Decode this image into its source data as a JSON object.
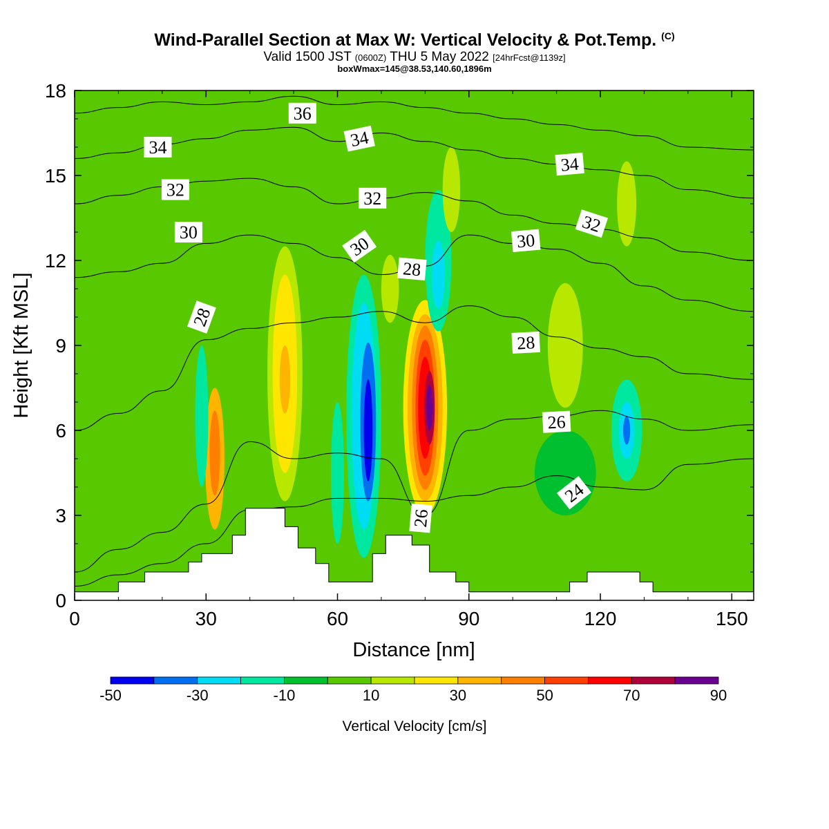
{
  "title": {
    "main": "Wind-Parallel Section at Max W: Vertical Velocity & Pot.Temp.",
    "copyright": "(C)",
    "valid_prefix": "Valid 1500 JST",
    "valid_utc": "(0600Z)",
    "valid_date": "THU 5 May 2022",
    "forecast": "[24hrFcst@1139z]",
    "box": "boxWmax=145@38.53,140.60,1896m"
  },
  "chart_data": {
    "type": "heatmap",
    "title": "Wind-Parallel Section at Max W: Vertical Velocity & Pot.Temp.",
    "xlabel": "Distance [nm]",
    "ylabel": "Height [Kft MSL]",
    "xlim": [
      0,
      155
    ],
    "ylim": [
      0,
      18
    ],
    "x_ticks": [
      0,
      30,
      60,
      90,
      120,
      150
    ],
    "y_ticks": [
      0,
      3,
      6,
      9,
      12,
      15,
      18
    ],
    "colorbar": {
      "label": "Vertical Velocity [cm/s]",
      "tick_labels": [
        -50,
        -30,
        -10,
        10,
        30,
        50,
        70,
        90
      ],
      "levels": [
        -50,
        -40,
        -30,
        -20,
        -10,
        0,
        10,
        20,
        30,
        40,
        50,
        60,
        70,
        80,
        90
      ],
      "colors": [
        "#0000f0",
        "#0070f0",
        "#00dcf4",
        "#00e8a0",
        "#00c030",
        "#58c800",
        "#b8e800",
        "#ffe600",
        "#ffb400",
        "#ff8000",
        "#ff4000",
        "#ff0000",
        "#b0003a",
        "#6a0090"
      ]
    },
    "background_level_color": "#58c800",
    "velocity_cells": [
      {
        "x": 32,
        "y": 5.0,
        "rx": 2.2,
        "ry": 2.5,
        "level": 30
      },
      {
        "x": 32,
        "y": 5.2,
        "rx": 1.2,
        "ry": 1.5,
        "level": 40
      },
      {
        "x": 29,
        "y": 6.5,
        "rx": 1.5,
        "ry": 2.5,
        "level": -20
      },
      {
        "x": 48,
        "y": 8.0,
        "rx": 4.0,
        "ry": 4.5,
        "level": 10
      },
      {
        "x": 48,
        "y": 8.0,
        "rx": 2.8,
        "ry": 3.5,
        "level": 20
      },
      {
        "x": 48,
        "y": 7.8,
        "rx": 1.2,
        "ry": 1.2,
        "level": 30
      },
      {
        "x": 66,
        "y": 6.5,
        "rx": 4.0,
        "ry": 5.0,
        "level": -20
      },
      {
        "x": 66,
        "y": 6.5,
        "rx": 2.8,
        "ry": 4.0,
        "level": -30
      },
      {
        "x": 67,
        "y": 6.3,
        "rx": 1.8,
        "ry": 2.8,
        "level": -40
      },
      {
        "x": 67,
        "y": 6.0,
        "rx": 1.0,
        "ry": 1.8,
        "level": -50
      },
      {
        "x": 80,
        "y": 6.8,
        "rx": 5.0,
        "ry": 3.8,
        "level": 20
      },
      {
        "x": 80,
        "y": 6.8,
        "rx": 4.0,
        "ry": 3.3,
        "level": 30
      },
      {
        "x": 80,
        "y": 6.8,
        "rx": 3.0,
        "ry": 2.9,
        "level": 40
      },
      {
        "x": 80,
        "y": 6.8,
        "rx": 2.2,
        "ry": 2.4,
        "level": 50
      },
      {
        "x": 80,
        "y": 6.8,
        "rx": 1.6,
        "ry": 1.8,
        "level": 60
      },
      {
        "x": 81,
        "y": 6.8,
        "rx": 1.2,
        "ry": 1.3,
        "level": 70
      },
      {
        "x": 81,
        "y": 6.8,
        "rx": 0.8,
        "ry": 0.8,
        "level": 80
      },
      {
        "x": 83,
        "y": 12.0,
        "rx": 3.0,
        "ry": 2.5,
        "level": -20
      },
      {
        "x": 83,
        "y": 11.5,
        "rx": 1.5,
        "ry": 1.2,
        "level": -30
      },
      {
        "x": 112,
        "y": 9.0,
        "rx": 4.0,
        "ry": 2.2,
        "level": 10
      },
      {
        "x": 126,
        "y": 6.0,
        "rx": 3.5,
        "ry": 1.8,
        "level": -20
      },
      {
        "x": 126,
        "y": 6.0,
        "rx": 1.8,
        "ry": 1.0,
        "level": -30
      },
      {
        "x": 126,
        "y": 6.0,
        "rx": 0.8,
        "ry": 0.5,
        "level": -40
      },
      {
        "x": 126,
        "y": 14.0,
        "rx": 2.2,
        "ry": 1.5,
        "level": 10
      },
      {
        "x": 112,
        "y": 4.5,
        "rx": 7.0,
        "ry": 1.5,
        "level": -10
      },
      {
        "x": 60,
        "y": 4.5,
        "rx": 1.5,
        "ry": 2.5,
        "level": -20
      },
      {
        "x": 86,
        "y": 14.5,
        "rx": 2.0,
        "ry": 1.5,
        "level": 10
      },
      {
        "x": 72,
        "y": 11.0,
        "rx": 2.0,
        "ry": 1.2,
        "level": 10
      }
    ],
    "terrain": [
      {
        "x": [
          0,
          10
        ],
        "top": 0.3
      },
      {
        "x": [
          10,
          16
        ],
        "top": 0.65
      },
      {
        "x": [
          16,
          26
        ],
        "top": 1.0
      },
      {
        "x": [
          26,
          29
        ],
        "top": 1.35
      },
      {
        "x": [
          29,
          36
        ],
        "top": 1.65
      },
      {
        "x": [
          36,
          39
        ],
        "top": 2.3
      },
      {
        "x": [
          39,
          48
        ],
        "top": 3.25
      },
      {
        "x": [
          48,
          51
        ],
        "top": 2.6
      },
      {
        "x": [
          51,
          55
        ],
        "top": 1.85
      },
      {
        "x": [
          55,
          58
        ],
        "top": 1.3
      },
      {
        "x": [
          58,
          68
        ],
        "top": 0.65
      },
      {
        "x": [
          68,
          71
        ],
        "top": 1.65
      },
      {
        "x": [
          71,
          77
        ],
        "top": 2.3
      },
      {
        "x": [
          77,
          81
        ],
        "top": 1.95
      },
      {
        "x": [
          81,
          87
        ],
        "top": 1.0
      },
      {
        "x": [
          87,
          90
        ],
        "top": 0.65
      },
      {
        "x": [
          90,
          113
        ],
        "top": 0.3
      },
      {
        "x": [
          113,
          117
        ],
        "top": 0.65
      },
      {
        "x": [
          117,
          129
        ],
        "top": 1.0
      },
      {
        "x": [
          129,
          132
        ],
        "top": 0.65
      },
      {
        "x": [
          132,
          155
        ],
        "top": 0.3
      }
    ],
    "isentropes": [
      {
        "label": "24",
        "y": [
          0.5,
          0.9,
          1.3,
          2.0,
          3.2,
          3.3,
          3.6,
          3.6,
          3.5,
          3.7,
          4.0,
          4.4,
          4.0,
          3.9,
          4.8,
          5.0
        ]
      },
      {
        "label": "26",
        "y": [
          1.0,
          1.8,
          2.4,
          3.4,
          5.6,
          5.0,
          5.2,
          5.0,
          3.0,
          6.0,
          6.4,
          6.5,
          6.7,
          6.4,
          6.0,
          6.2
        ]
      },
      {
        "label": "28",
        "y": [
          6.0,
          6.6,
          7.4,
          9.2,
          9.6,
          9.8,
          10.0,
          10.2,
          9.8,
          10.4,
          10.0,
          9.3,
          8.9,
          8.6,
          8.0,
          7.8
        ]
      },
      {
        "label": "30",
        "y": [
          11.4,
          11.6,
          11.9,
          12.6,
          12.9,
          12.6,
          12.1,
          11.5,
          11.8,
          12.9,
          12.6,
          12.4,
          11.9,
          11.1,
          10.6,
          10.2
        ]
      },
      {
        "label": "32",
        "y": [
          14.0,
          14.3,
          14.6,
          14.8,
          14.9,
          14.6,
          14.0,
          14.2,
          14.4,
          14.1,
          13.6,
          13.3,
          13.1,
          12.8,
          12.3,
          12.0
        ]
      },
      {
        "label": "34",
        "y": [
          15.6,
          15.8,
          16.1,
          16.3,
          16.6,
          16.7,
          16.2,
          16.5,
          16.2,
          15.9,
          15.6,
          15.4,
          15.2,
          15.0,
          14.5,
          14.2
        ]
      },
      {
        "label": "36",
        "y": [
          17.2,
          17.4,
          17.6,
          17.5,
          17.6,
          17.8,
          17.5,
          17.6,
          17.4,
          17.2,
          17.0,
          16.8,
          16.6,
          16.4,
          16.0,
          15.9
        ]
      }
    ],
    "isentrope_x": [
      0,
      10,
      20,
      30,
      40,
      50,
      60,
      70,
      80,
      90,
      100,
      110,
      120,
      130,
      140,
      155
    ],
    "contour_labels": [
      {
        "text": "36",
        "x": 52,
        "y": 17.2,
        "angle": 0
      },
      {
        "text": "34",
        "x": 19,
        "y": 16.0,
        "angle": 0
      },
      {
        "text": "34",
        "x": 65,
        "y": 16.3,
        "angle": -12
      },
      {
        "text": "34",
        "x": 113,
        "y": 15.4,
        "angle": -5
      },
      {
        "text": "32",
        "x": 23,
        "y": 14.5,
        "angle": 0
      },
      {
        "text": "32",
        "x": 68,
        "y": 14.2,
        "angle": 0
      },
      {
        "text": "32",
        "x": 118,
        "y": 13.3,
        "angle": 18
      },
      {
        "text": "30",
        "x": 26,
        "y": 13.0,
        "angle": 0
      },
      {
        "text": "30",
        "x": 65,
        "y": 12.5,
        "angle": -35
      },
      {
        "text": "30",
        "x": 103,
        "y": 12.7,
        "angle": -5
      },
      {
        "text": "28",
        "x": 29,
        "y": 10.0,
        "angle": -70
      },
      {
        "text": "28",
        "x": 77,
        "y": 11.7,
        "angle": 5
      },
      {
        "text": "28",
        "x": 103,
        "y": 9.1,
        "angle": -3
      },
      {
        "text": "26",
        "x": 110,
        "y": 6.3,
        "angle": -3
      },
      {
        "text": "26",
        "x": 79,
        "y": 2.9,
        "angle": -85
      },
      {
        "text": "24",
        "x": 114,
        "y": 3.8,
        "angle": -38
      }
    ]
  }
}
